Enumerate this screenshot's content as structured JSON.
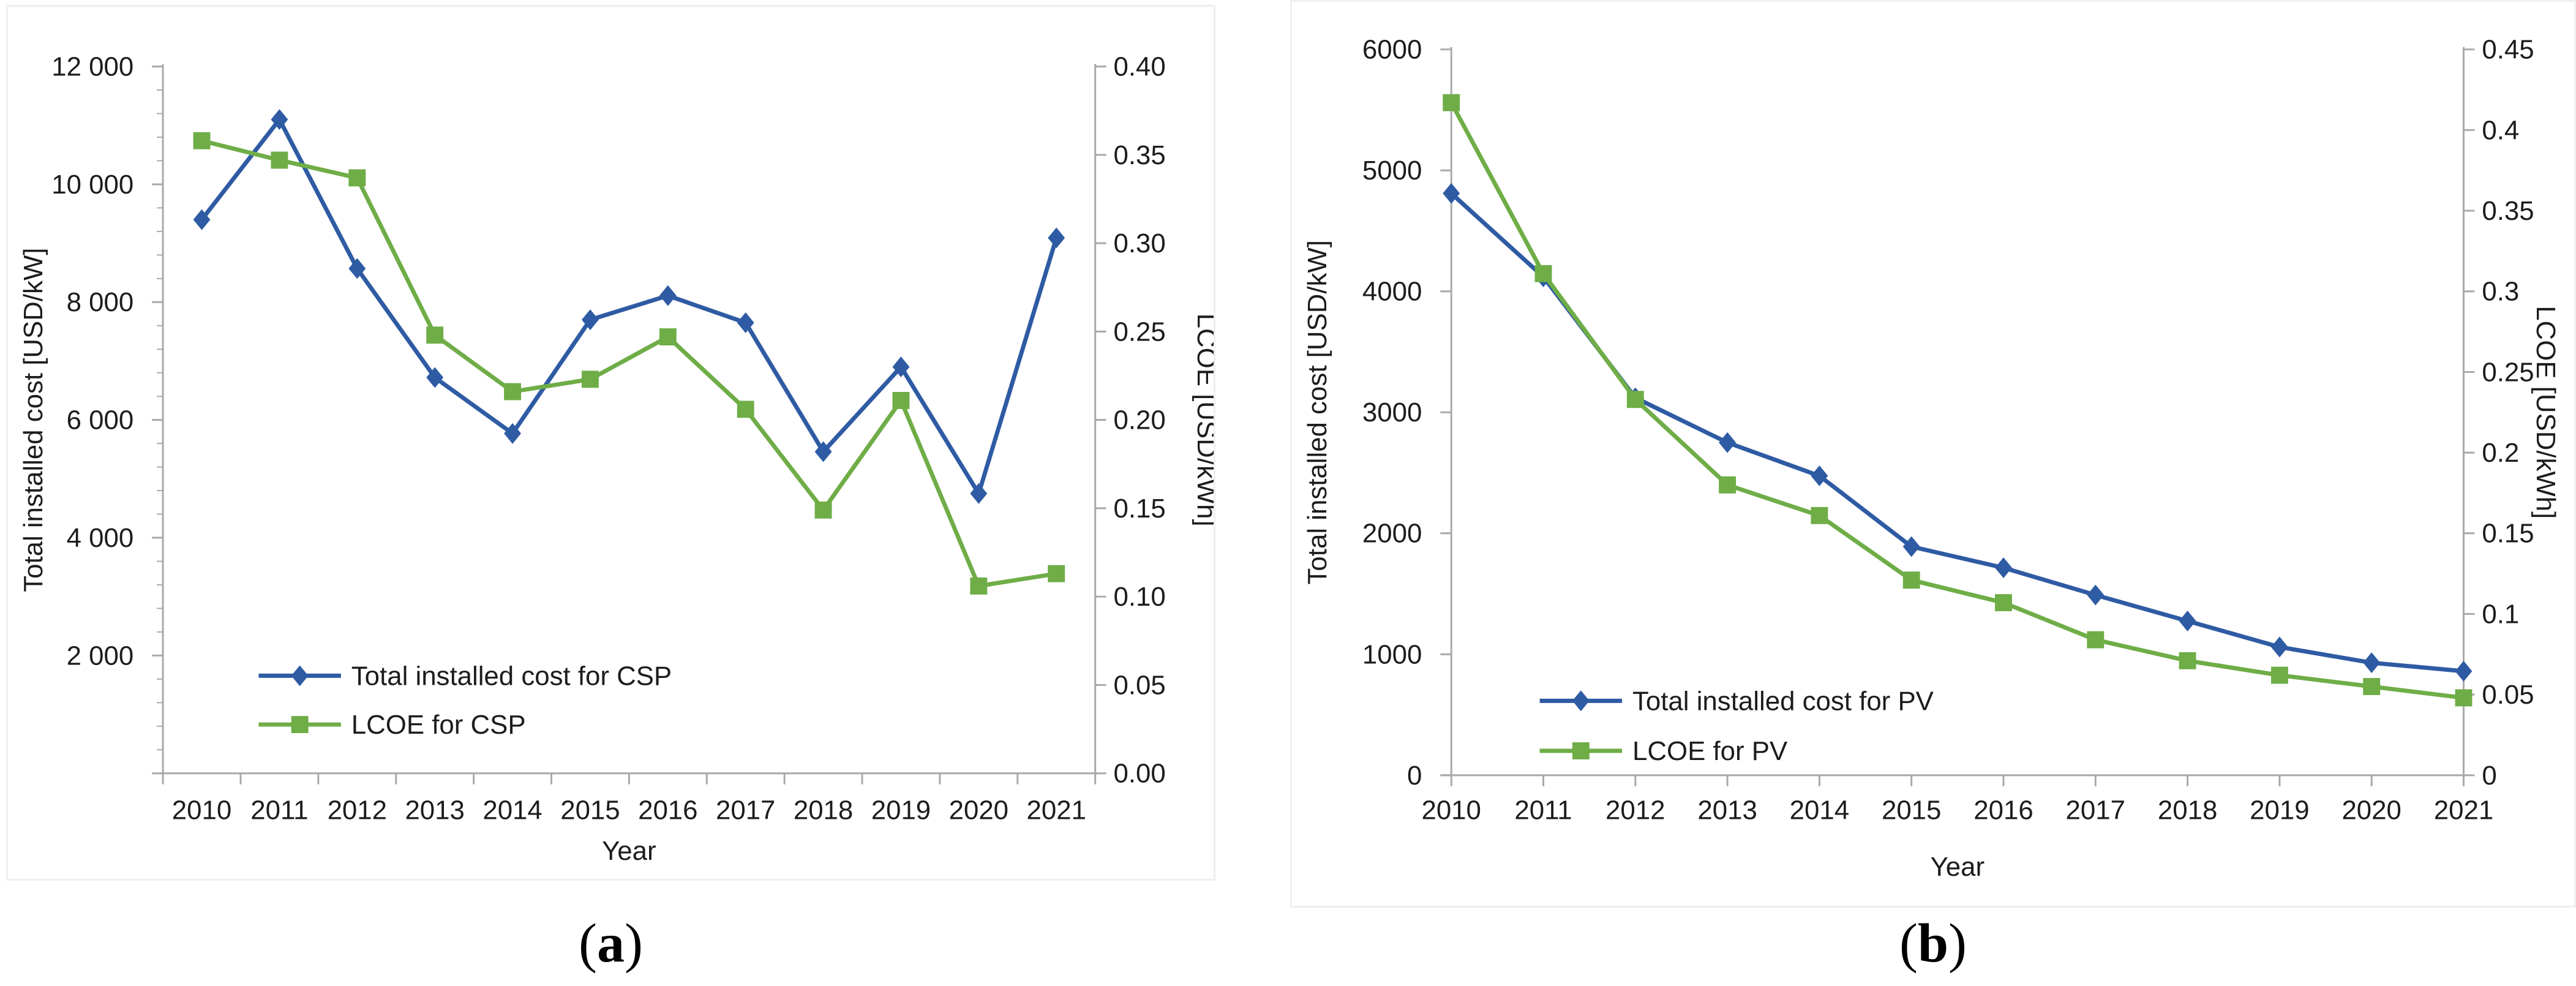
{
  "colors": {
    "cost_line": "#2e5ba3",
    "lcoe_line": "#6fad47",
    "axis_line": "#a9a9a9",
    "text": "#1c1c1c",
    "panel_border": "#efefef"
  },
  "captions": {
    "a": {
      "open": "(",
      "letter": "a",
      "close": ")"
    },
    "b": {
      "open": "(",
      "letter": "b",
      "close": ")"
    }
  },
  "chart_data": [
    {
      "id": "csp",
      "type": "line",
      "title": "",
      "xlabel": "Year",
      "ylabel_left": "Total installed cost [USD/kW]",
      "ylabel_right": "LCOE [USD/kWh]",
      "grid": false,
      "legend_position": "bottom-left-inside",
      "categories": [
        "2010",
        "2011",
        "2012",
        "2013",
        "2014",
        "2015",
        "2016",
        "2017",
        "2018",
        "2019",
        "2020",
        "2021"
      ],
      "series": [
        {
          "name": "Total installed cost for CSP",
          "axis": "left",
          "marker": "diamond",
          "color": "#2e5ba3",
          "values": [
            9400,
            11100,
            8570,
            6720,
            5770,
            7700,
            8110,
            7650,
            5460,
            6900,
            4750,
            9090
          ]
        },
        {
          "name": "LCOE for CSP",
          "axis": "right",
          "marker": "square",
          "color": "#6fad47",
          "values": [
            0.358,
            0.347,
            0.337,
            0.248,
            0.216,
            0.223,
            0.247,
            0.206,
            0.149,
            0.211,
            0.106,
            0.113
          ]
        }
      ],
      "left_axis": {
        "min": 0,
        "max": 12000,
        "minor_step": 400,
        "ticks": [
          {
            "v": 2000,
            "label": "2 000"
          },
          {
            "v": 4000,
            "label": "4 000"
          },
          {
            "v": 6000,
            "label": "6 000"
          },
          {
            "v": 8000,
            "label": "8 000"
          },
          {
            "v": 10000,
            "label": "10 000"
          },
          {
            "v": 12000,
            "label": "12 000"
          }
        ]
      },
      "right_axis": {
        "min": 0,
        "max": 0.4,
        "ticks": [
          {
            "v": 0.0,
            "label": "0.00"
          },
          {
            "v": 0.05,
            "label": "0.05"
          },
          {
            "v": 0.1,
            "label": "0.10"
          },
          {
            "v": 0.15,
            "label": "0.15"
          },
          {
            "v": 0.2,
            "label": "0.20"
          },
          {
            "v": 0.25,
            "label": "0.25"
          },
          {
            "v": 0.3,
            "label": "0.30"
          },
          {
            "v": 0.35,
            "label": "0.35"
          },
          {
            "v": 0.4,
            "label": "0.40"
          }
        ]
      }
    },
    {
      "id": "pv",
      "type": "line",
      "title": "",
      "xlabel": "Year",
      "ylabel_left": "Total installed cost [USD/kW]",
      "ylabel_right": "LCOE [USD/kWh]",
      "grid": false,
      "legend_position": "bottom-left-inside",
      "categories": [
        "2010",
        "2011",
        "2012",
        "2013",
        "2014",
        "2015",
        "2016",
        "2017",
        "2018",
        "2019",
        "2020",
        "2021"
      ],
      "series": [
        {
          "name": "Total installed cost for PV",
          "axis": "left",
          "marker": "diamond",
          "color": "#2e5ba3",
          "values": [
            4810,
            4120,
            3120,
            2750,
            2475,
            1890,
            1715,
            1490,
            1275,
            1060,
            930,
            860
          ]
        },
        {
          "name": "LCOE for PV",
          "axis": "right",
          "marker": "square",
          "color": "#6fad47",
          "values": [
            0.417,
            0.311,
            0.233,
            0.18,
            0.161,
            0.121,
            0.107,
            0.084,
            0.071,
            0.062,
            0.055,
            0.048
          ]
        }
      ],
      "left_axis": {
        "min": 0,
        "max": 6000,
        "minor_step": 0,
        "ticks": [
          {
            "v": 0,
            "label": "0"
          },
          {
            "v": 1000,
            "label": "1000"
          },
          {
            "v": 2000,
            "label": "2000"
          },
          {
            "v": 3000,
            "label": "3000"
          },
          {
            "v": 4000,
            "label": "4000"
          },
          {
            "v": 5000,
            "label": "5000"
          },
          {
            "v": 6000,
            "label": "6000"
          }
        ]
      },
      "right_axis": {
        "min": 0,
        "max": 0.45,
        "ticks": [
          {
            "v": 0.0,
            "label": "0"
          },
          {
            "v": 0.05,
            "label": "0.05"
          },
          {
            "v": 0.1,
            "label": "0.1"
          },
          {
            "v": 0.15,
            "label": "0.15"
          },
          {
            "v": 0.2,
            "label": "0.2"
          },
          {
            "v": 0.25,
            "label": "0.25"
          },
          {
            "v": 0.3,
            "label": "0.3"
          },
          {
            "v": 0.35,
            "label": "0.35"
          },
          {
            "v": 0.4,
            "label": "0.4"
          },
          {
            "v": 0.45,
            "label": "0.45"
          }
        ]
      }
    }
  ]
}
